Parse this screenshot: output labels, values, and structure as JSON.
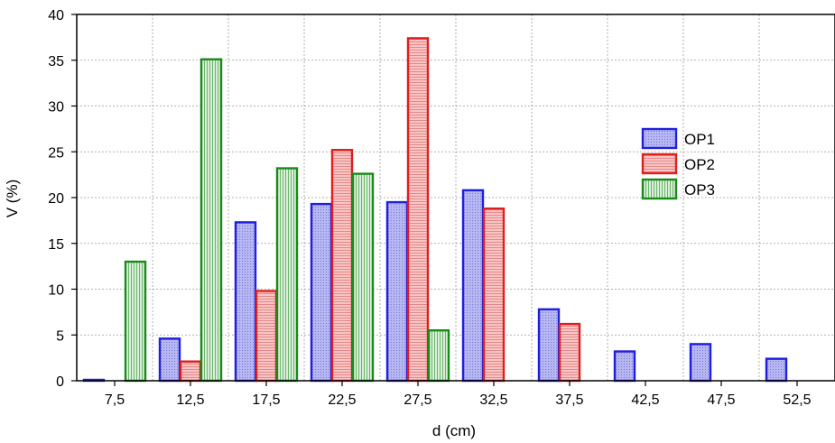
{
  "chart_data": {
    "type": "bar",
    "title": "",
    "xlabel": "d (cm)",
    "ylabel": "V (%)",
    "ylim": [
      0,
      40
    ],
    "yticks": [
      0,
      5,
      10,
      15,
      20,
      25,
      30,
      35,
      40
    ],
    "grid": true,
    "legend_position": "right",
    "categories": [
      "7,5",
      "12,5",
      "17,5",
      "22,5",
      "27,5",
      "32,5",
      "37,5",
      "42,5",
      "47,5",
      "52,5"
    ],
    "series": [
      {
        "name": "OP1",
        "stroke": "#1f1fe0",
        "fill": "#b3b3f2",
        "pattern": "dots",
        "values": [
          0.1,
          4.6,
          17.3,
          19.3,
          19.5,
          20.8,
          7.8,
          3.2,
          4.0,
          2.4
        ]
      },
      {
        "name": "OP2",
        "stroke": "#e01f1f",
        "fill": "#f7b9b9",
        "pattern": "hatch",
        "values": [
          null,
          2.1,
          9.8,
          25.2,
          37.4,
          18.8,
          6.2,
          null,
          null,
          null
        ]
      },
      {
        "name": "OP3",
        "stroke": "#1a8a1a",
        "fill": "#c8e6c8",
        "pattern": "vertical-lines",
        "values": [
          13.0,
          35.1,
          23.2,
          22.6,
          5.5,
          null,
          null,
          null,
          null,
          null
        ]
      }
    ]
  }
}
